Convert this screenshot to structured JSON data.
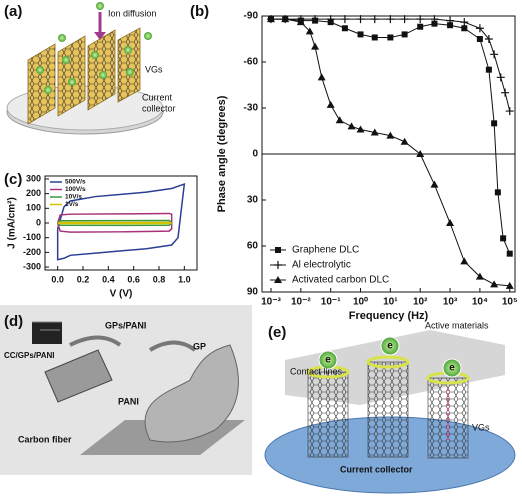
{
  "panel_labels": [
    "(a)",
    "(b)",
    "(c)",
    "(d)",
    "(e)"
  ],
  "panel_a": {
    "ion_diffusion": "Ion diffusion",
    "vgs": "VGs",
    "current_collector": [
      "Current",
      "collector"
    ]
  },
  "panel_d": {
    "cc": "CC/GPs/PANI",
    "gps": "GPs/PANI",
    "gp": "GP",
    "pani": "PANI",
    "fiber": "Carbon fiber"
  },
  "panel_e": {
    "active": "Active materials",
    "contact": "Contact  lines",
    "vgs": "VGs",
    "collector": "Current collector",
    "electron": "e"
  },
  "chart_data": [
    {
      "type": "line",
      "x_label": "Frequency (Hz)",
      "y_label": "Phase angle (degrees)",
      "x_log": true,
      "xlim": [
        0.0005,
        150000
      ],
      "ylim": [
        -90,
        90
      ],
      "y_inverted": true,
      "hline": 0,
      "legend": "lower left",
      "xticks": [
        {
          "value": 0.001,
          "label": "10⁻³"
        },
        {
          "value": 0.01,
          "label": "10⁻²"
        },
        {
          "value": 0.1,
          "label": "10⁻¹"
        },
        {
          "value": 1,
          "label": "10⁰"
        },
        {
          "value": 10,
          "label": "10¹"
        },
        {
          "value": 100,
          "label": "10²"
        },
        {
          "value": 1000,
          "label": "10³"
        },
        {
          "value": 10000,
          "label": "10⁴"
        },
        {
          "value": 100000,
          "label": "10⁵"
        }
      ],
      "yticks": [
        -90,
        -60,
        -30,
        0,
        30,
        60,
        90
      ],
      "series": [
        {
          "name": "Graphene DLC",
          "color": "#111111",
          "marker": "square",
          "x": [
            0.001,
            0.003,
            0.01,
            0.03,
            0.1,
            0.3,
            1,
            3,
            10,
            30,
            100,
            300,
            1000,
            3000,
            10000,
            20000,
            30000,
            40000,
            60000,
            100000
          ],
          "values": [
            -88,
            -88,
            -87,
            -87,
            -86,
            -82,
            -78,
            -76,
            -76,
            -78,
            -83,
            -85,
            -84,
            -82,
            -75,
            -55,
            -20,
            25,
            55,
            65
          ]
        },
        {
          "name": "Al electrolytic",
          "color": "#111111",
          "marker": "plus",
          "x": [
            0.001,
            0.003,
            0.01,
            0.03,
            0.1,
            0.3,
            1,
            3,
            10,
            30,
            100,
            300,
            1000,
            3000,
            10000,
            20000,
            30000,
            50000,
            70000,
            100000
          ],
          "values": [
            -88,
            -88,
            -88,
            -88,
            -88,
            -88,
            -88,
            -88,
            -88,
            -88,
            -88,
            -88,
            -87,
            -86,
            -82,
            -75,
            -65,
            -50,
            -40,
            -28
          ]
        },
        {
          "name": "Activated carbon DLC",
          "color": "#111111",
          "marker": "triangle",
          "x": [
            0.001,
            0.003,
            0.01,
            0.02,
            0.03,
            0.05,
            0.1,
            0.2,
            0.5,
            1,
            3,
            10,
            30,
            100,
            300,
            1000,
            3000,
            10000,
            30000,
            100000
          ],
          "values": [
            -88,
            -88,
            -86,
            -80,
            -70,
            -50,
            -32,
            -22,
            -18,
            -16,
            -14,
            -12,
            -8,
            0,
            20,
            45,
            70,
            80,
            85,
            86
          ]
        }
      ]
    },
    {
      "type": "line",
      "x_label": "V (V)",
      "y_label": "J (mA/cm²)",
      "xlim": [
        -0.1,
        1.1
      ],
      "ylim": [
        -320,
        320
      ],
      "legend": "upper left",
      "xticks": [
        {
          "value": 0,
          "label": "0.0"
        },
        {
          "value": 0.2,
          "label": "0.2"
        },
        {
          "value": 0.4,
          "label": "0.4"
        },
        {
          "value": 0.6,
          "label": "0.6"
        },
        {
          "value": 0.8,
          "label": "0.8"
        },
        {
          "value": 1,
          "label": "1.0"
        }
      ],
      "yticks": [
        -300,
        -200,
        -100,
        0,
        100,
        200,
        300
      ],
      "series": [
        {
          "name": "500V/s",
          "color": "#2b3f95",
          "x": [
            0,
            0.05,
            0.1,
            0.3,
            0.5,
            0.7,
            0.9,
            1.0,
            0.98,
            0.95,
            0.9,
            0.7,
            0.5,
            0.3,
            0.1,
            0.05,
            0,
            0
          ],
          "values": [
            -40,
            110,
            150,
            180,
            195,
            210,
            235,
            265,
            120,
            -100,
            -150,
            -175,
            -190,
            -205,
            -220,
            -240,
            -250,
            -40
          ]
        },
        {
          "name": "100V/s",
          "color": "#a8327a",
          "x": [
            0,
            0.02,
            0.1,
            0.5,
            0.88,
            0.9,
            0.9,
            0.88,
            0.5,
            0.1,
            0.02,
            0
          ],
          "values": [
            0,
            55,
            60,
            62,
            65,
            60,
            -40,
            -55,
            -60,
            -62,
            -55,
            0
          ]
        },
        {
          "name": "10V/s",
          "color": "#3a9a3a",
          "x": [
            0,
            0.02,
            0.5,
            0.88,
            0.9,
            0.88,
            0.5,
            0.02,
            0
          ],
          "values": [
            0,
            15,
            16,
            17,
            0,
            -15,
            -16,
            -15,
            0
          ]
        },
        {
          "name": "1V/s",
          "color": "#d4c200",
          "x": [
            0,
            0.02,
            0.5,
            0.88,
            0.9,
            0.88,
            0.5,
            0.02,
            0
          ],
          "values": [
            0,
            3,
            3,
            3,
            0,
            -3,
            -3,
            -3,
            0
          ]
        }
      ]
    }
  ]
}
